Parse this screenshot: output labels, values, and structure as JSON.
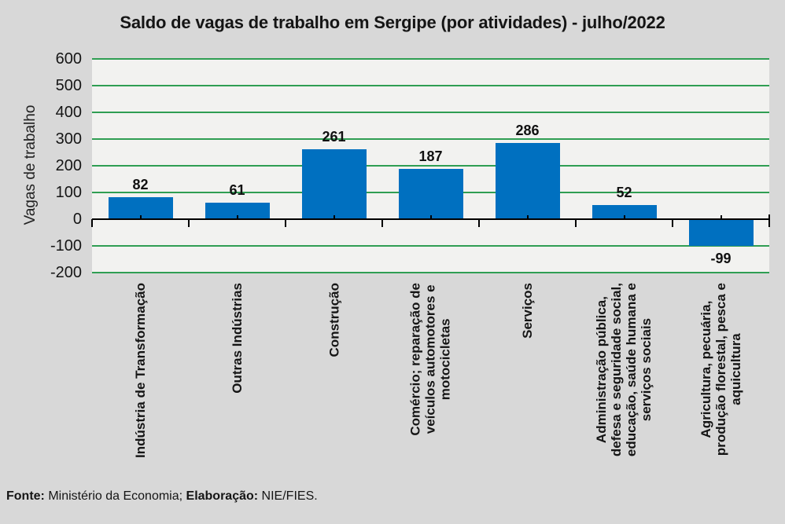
{
  "page": {
    "background": "#d8d8d8"
  },
  "title": "Saldo de vagas de trabalho em Sergipe (por atividades) - julho/2022",
  "footer": {
    "source_label": "Fonte:",
    "source_text": " Ministério da Economia; ",
    "elaboration_label": "Elaboração:",
    "elaboration_text": " NIE/FIES."
  },
  "colors": {
    "bar": "#0070C0",
    "gridline": "#2F9E53",
    "plot_background": "#F2F2F0",
    "page_background": "#D8D8D8",
    "axis": "#000000"
  },
  "chart_data": {
    "type": "bar",
    "title": "Saldo de vagas de trabalho em Sergipe (por atividades) - julho/2022",
    "xlabel": "",
    "ylabel": "Vagas de trabalho",
    "ylim": [
      -200,
      600
    ],
    "ytick_step": 100,
    "yticks": [
      600,
      500,
      400,
      300,
      200,
      100,
      0,
      -100,
      -200
    ],
    "grid": true,
    "legend": false,
    "categories": [
      "Indústria de Transformação",
      "Outras Indústrias",
      "Construção",
      "Comércio; reparação de veículos automotores e motocicletas",
      "Serviços",
      "Administração pública, defesa e seguridade social, educação, saúde humana e serviços sociais",
      "Agricultura, pecuária, produção florestal, pesca e aquicultura"
    ],
    "category_label_lines": [
      [
        "Indústria de Transformação"
      ],
      [
        "Outras Indústrias"
      ],
      [
        "Construção"
      ],
      [
        "Comércio; reparação de",
        "veículos automotores e",
        "motocicletas"
      ],
      [
        "Serviços"
      ],
      [
        "Administração pública,",
        "defesa e seguridade social,",
        "educação, saúde humana e",
        "serviços sociais"
      ],
      [
        "Agricultura, pecuária,",
        "produção florestal, pesca e",
        "aquicultura"
      ]
    ],
    "values": [
      82,
      61,
      261,
      187,
      286,
      52,
      -99
    ],
    "value_labels": [
      "82",
      "61",
      "261",
      "187",
      "286",
      "52",
      "-99"
    ]
  }
}
